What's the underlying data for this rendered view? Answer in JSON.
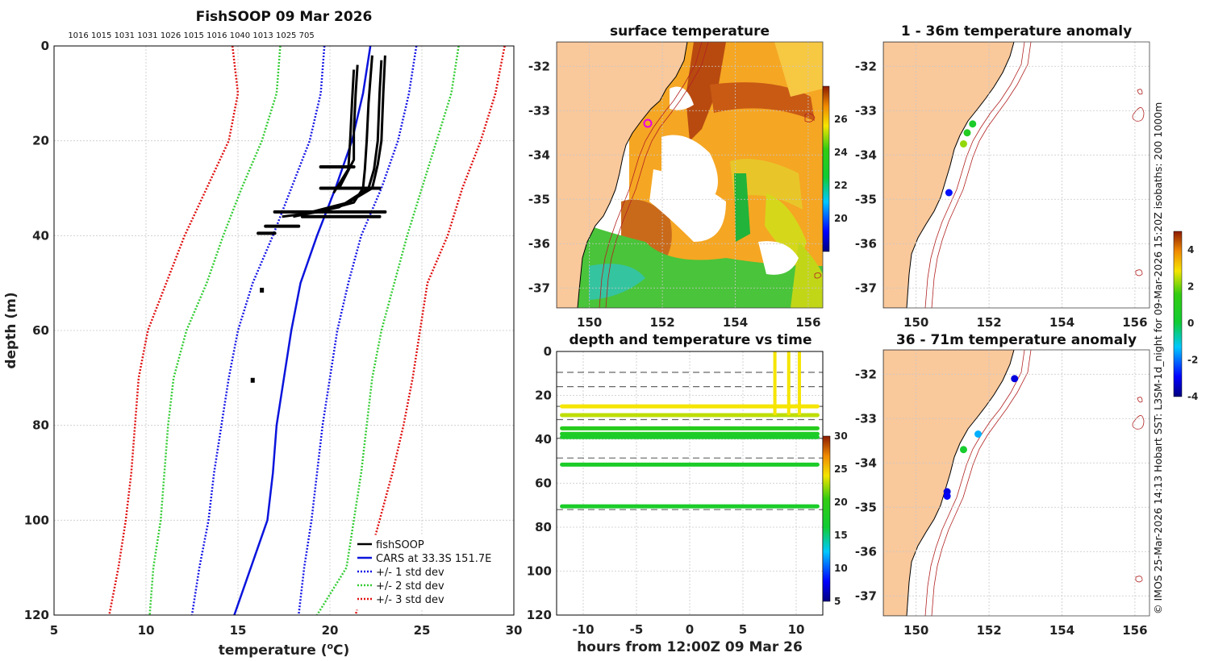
{
  "colors": {
    "land": "#f9c89b",
    "cars": "#0a14dc",
    "std1": "#1515e6",
    "std2": "#33cc33",
    "std3": "#e01010",
    "fishsoop": "#000000",
    "isobath": "#b22222"
  },
  "profile": {
    "title": "FishSOOP 09 Mar 2026",
    "vessel_ids": "1016 1015 1031 1031 1026 1015 1016 1040 1013 1025 705",
    "xlabel": "temperature (°C)",
    "xlabel_main": "temperature (",
    "xlabel_unit": "o",
    "xlabel_end": "C)",
    "ylabel": "depth (m)",
    "legend": [
      "fishSOOP",
      "CARS at 33.3S 151.7E",
      "+/- 1 std dev",
      "+/- 2 std dev",
      "+/- 3 std dev"
    ]
  },
  "sst_map": {
    "title": "surface temperature"
  },
  "anom_top": {
    "title": "1 - 36m temperature anomaly"
  },
  "anom_bottom": {
    "title": "36 - 71m temperature anomaly"
  },
  "timeseries": {
    "title": "depth and temperature vs time",
    "xlabel": "hours from 12:00Z 09 Mar 26"
  },
  "credit": "© IMOS 25-Mar-2026 14:13 Hobart SST: L3SM-1d_night for 09-Mar-2026 15:20Z isobaths: 200  1000m",
  "chart_data": [
    {
      "type": "line",
      "name": "temperature profile",
      "xlim": [
        5,
        30
      ],
      "ylim": [
        0,
        120
      ],
      "xticks": [
        5,
        10,
        15,
        20,
        25,
        30
      ],
      "yticks": [
        0,
        20,
        40,
        60,
        80,
        100,
        120
      ],
      "depth": [
        0,
        10,
        20,
        30,
        40,
        50,
        60,
        70,
        80,
        90,
        100,
        110,
        120
      ],
      "series": [
        {
          "name": "CARS",
          "style": "solid",
          "color": "#0a14dc",
          "values": [
            22.2,
            21.8,
            21.2,
            20.3,
            19.3,
            18.4,
            17.9,
            17.5,
            17.1,
            16.9,
            16.6,
            15.7,
            14.8
          ]
        },
        {
          "name": "mean-1sd",
          "style": "dot",
          "color": "#1515e6",
          "values": [
            19.7,
            19.5,
            18.9,
            17.9,
            16.9,
            15.8,
            15.0,
            14.5,
            14.1,
            13.7,
            13.4,
            12.9,
            12.5
          ]
        },
        {
          "name": "mean+1sd",
          "style": "dot",
          "color": "#1515e6",
          "values": [
            24.7,
            24.3,
            23.7,
            22.8,
            21.7,
            21.0,
            20.4,
            20.0,
            19.6,
            19.3,
            19.0,
            18.6,
            18.3
          ]
        },
        {
          "name": "mean-2sd",
          "style": "dot",
          "color": "#33cc33",
          "values": [
            17.3,
            17.1,
            16.3,
            15.2,
            14.2,
            13.3,
            12.2,
            11.5,
            11.2,
            11.0,
            10.8,
            10.4,
            10.2
          ]
        },
        {
          "name": "mean+2sd",
          "style": "dot",
          "color": "#33cc33",
          "values": [
            27.0,
            26.6,
            25.8,
            25.0,
            24.2,
            23.5,
            22.8,
            22.3,
            22.0,
            21.7,
            21.3,
            20.9,
            19.3
          ]
        },
        {
          "name": "mean-3sd",
          "style": "dot",
          "color": "#e01010",
          "values": [
            14.7,
            15.0,
            14.5,
            13.3,
            12.1,
            11.1,
            10.1,
            9.6,
            9.4,
            9.2,
            8.9,
            8.5,
            8.0
          ]
        },
        {
          "name": "mean+3sd",
          "style": "dot",
          "color": "#e01010",
          "values": [
            29.5,
            29.0,
            28.2,
            27.2,
            26.4,
            25.3,
            24.9,
            24.5,
            24.0,
            23.4,
            22.7,
            22.0,
            21.4
          ]
        }
      ],
      "fishsoop_casts": [
        {
          "temp": [
            22.3,
            22.1,
            22.0,
            21.9,
            21.8,
            21.3,
            19.4,
            17.4
          ],
          "depth": [
            2,
            12,
            20,
            26,
            30,
            33,
            35,
            36
          ]
        },
        {
          "temp": [
            23.0,
            22.9,
            22.8,
            22.6,
            22.3,
            21.0,
            19.0
          ],
          "depth": [
            2,
            10,
            20,
            25,
            30,
            33,
            35
          ]
        },
        {
          "temp": [
            22.8,
            22.7,
            22.6,
            22.4,
            22.1,
            20.5,
            18.0
          ],
          "depth": [
            3,
            10,
            20,
            26,
            30,
            34,
            36
          ]
        },
        {
          "temp": [
            21.5,
            21.4,
            21.3,
            21.3,
            20.5
          ],
          "depth": [
            4,
            10,
            18,
            24,
            30
          ]
        },
        {
          "temp": [
            21.3,
            21.2,
            21.1,
            21.0,
            20.2
          ],
          "depth": [
            5,
            12,
            20,
            26,
            31
          ]
        }
      ],
      "fishsoop_bottom_segments": [
        {
          "temp": [
            19.5,
            21.3
          ],
          "depth": 25.5
        },
        {
          "temp": [
            19.5,
            22.7
          ],
          "depth": 30.0
        },
        {
          "temp": [
            17.0,
            23.0
          ],
          "depth": 35.0
        },
        {
          "temp": [
            18.5,
            22.7
          ],
          "depth": 36.0
        },
        {
          "temp": [
            16.5,
            18.3
          ],
          "depth": 38.0
        },
        {
          "temp": [
            16.1,
            17.0
          ],
          "depth": 39.5
        }
      ],
      "fishsoop_points": [
        {
          "temp": 16.3,
          "depth": 51.5
        },
        {
          "temp": 15.8,
          "depth": 70.5
        }
      ]
    },
    {
      "type": "scatter",
      "name": "depth vs time",
      "xlim": [
        -12.5,
        12.5
      ],
      "ylim": [
        0,
        120
      ],
      "xticks": [
        -10,
        -5,
        0,
        5,
        10
      ],
      "yticks": [
        0,
        20,
        40,
        60,
        80,
        100,
        120
      ],
      "dashed_depths": [
        9.5,
        16,
        25,
        31,
        39.5,
        48.5,
        72
      ],
      "tracks": [
        {
          "depth": 25.0,
          "temp": 24,
          "x": [
            -12,
            12
          ]
        },
        {
          "depth": 29.0,
          "temp": 23,
          "x": [
            -12,
            12
          ]
        },
        {
          "depth": 35.0,
          "temp": 19,
          "x": [
            -12,
            12
          ]
        },
        {
          "depth": 37.5,
          "temp": 18,
          "x": [
            -12,
            12
          ]
        },
        {
          "depth": 39.0,
          "temp": 17.5,
          "x": [
            -12,
            12
          ]
        },
        {
          "depth": 51.5,
          "temp": 17.5,
          "x": [
            -12,
            12
          ]
        },
        {
          "depth": 70.5,
          "temp": 17.5,
          "x": [
            -12,
            12
          ]
        }
      ],
      "casts_x": [
        8.0,
        9.3,
        10.3
      ],
      "colorbar": {
        "min": 5,
        "max": 30,
        "ticks": [
          5,
          10,
          15,
          20,
          25,
          30
        ],
        "label_precision": 0
      }
    },
    {
      "type": "heatmap",
      "name": "surface temperature map",
      "xlim": [
        149.1,
        156.4
      ],
      "ylim": [
        -37.45,
        -31.45
      ],
      "xticks": [
        150,
        152,
        154,
        156
      ],
      "yticks": [
        -32,
        -33,
        -34,
        -35,
        -36,
        -37
      ],
      "colorbar": {
        "min": 18,
        "max": 28,
        "ticks": [
          20,
          22,
          24,
          26
        ]
      },
      "ship_position": {
        "lon": 151.7,
        "lat": -33.3
      }
    },
    {
      "type": "scatter",
      "name": "1 - 36m temperature anomaly",
      "xlim": [
        149.1,
        156.4
      ],
      "ylim": [
        -37.45,
        -31.45
      ],
      "xticks": [
        150,
        152,
        154,
        156
      ],
      "yticks": [
        -32,
        -33,
        -34,
        -35,
        -36,
        -37
      ],
      "points": [
        {
          "lon": 151.55,
          "lat": -33.3,
          "anom": 0.5
        },
        {
          "lon": 151.4,
          "lat": -33.5,
          "anom": 0.8
        },
        {
          "lon": 151.3,
          "lat": -33.75,
          "anom": 2.2
        },
        {
          "lon": 150.9,
          "lat": -34.85,
          "anom": -2.8
        }
      ]
    },
    {
      "type": "scatter",
      "name": "36 - 71m temperature anomaly",
      "xlim": [
        149.1,
        156.4
      ],
      "ylim": [
        -37.45,
        -31.45
      ],
      "xticks": [
        150,
        152,
        154,
        156
      ],
      "yticks": [
        -32,
        -33,
        -34,
        -35,
        -36,
        -37
      ],
      "points": [
        {
          "lon": 152.7,
          "lat": -32.1,
          "anom": -3.2
        },
        {
          "lon": 151.7,
          "lat": -33.35,
          "anom": -1.5
        },
        {
          "lon": 151.3,
          "lat": -33.7,
          "anom": 0.3
        },
        {
          "lon": 150.85,
          "lat": -34.65,
          "anom": -3.2
        },
        {
          "lon": 150.85,
          "lat": -34.75,
          "anom": -3.0
        }
      ],
      "colorbar": {
        "min": -4,
        "max": 5,
        "ticks": [
          -4,
          -2,
          0,
          2,
          4
        ]
      }
    }
  ]
}
